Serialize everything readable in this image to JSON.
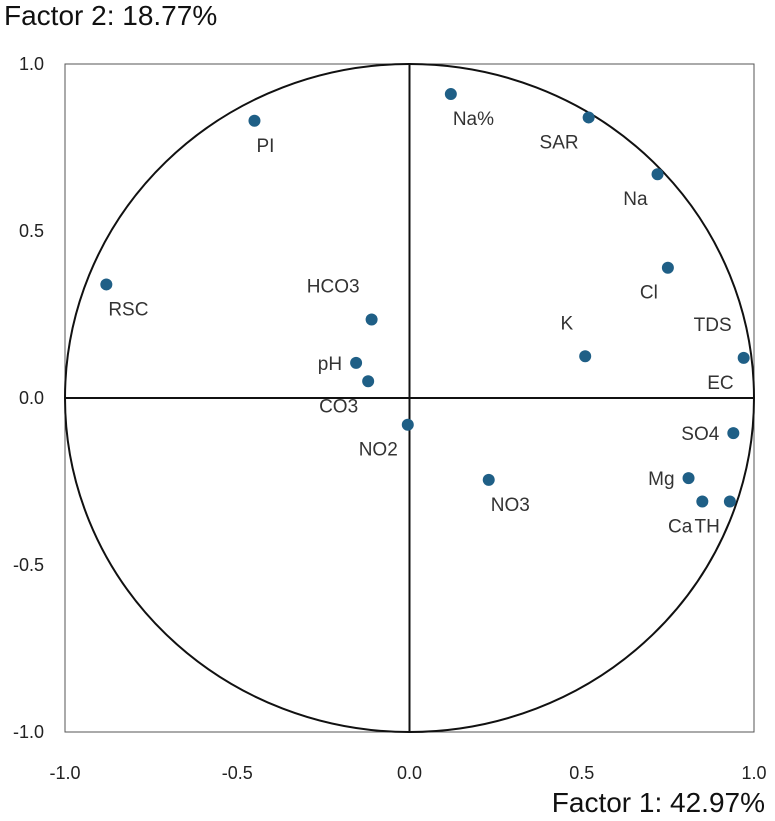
{
  "chart_data": {
    "type": "scatter",
    "title": "",
    "xlabel": "Factor 1: 42.97%",
    "ylabel": "Factor 2: 18.77%",
    "xlim": [
      -1.0,
      1.0
    ],
    "ylim": [
      -1.0,
      1.0
    ],
    "xticks": [
      "-1.0",
      "-0.5",
      "0.0",
      "0.5",
      "1.0"
    ],
    "yticks": [
      "1.0",
      "0.5",
      "0.0",
      "-0.5",
      "-1.0"
    ],
    "unit_circle": true,
    "grid": false,
    "point_color": "#1f5f86",
    "points": [
      {
        "label": "PI",
        "x": -0.45,
        "y": 0.83,
        "pos": "below-right"
      },
      {
        "label": "Na%",
        "x": 0.12,
        "y": 0.91,
        "pos": "below-right"
      },
      {
        "label": "SAR",
        "x": 0.52,
        "y": 0.84,
        "pos": "below-left"
      },
      {
        "label": "Na",
        "x": 0.72,
        "y": 0.67,
        "pos": "below-left"
      },
      {
        "label": "Cl",
        "x": 0.75,
        "y": 0.39,
        "pos": "below-left"
      },
      {
        "label": "RSC",
        "x": -0.88,
        "y": 0.34,
        "pos": "below-right"
      },
      {
        "label": "HCO3",
        "x": -0.11,
        "y": 0.235,
        "pos": "above-left"
      },
      {
        "label": "pH",
        "x": -0.155,
        "y": 0.105,
        "pos": "left"
      },
      {
        "label": "CO3",
        "x": -0.12,
        "y": 0.05,
        "pos": "below-left"
      },
      {
        "label": "K",
        "x": 0.51,
        "y": 0.125,
        "pos": "above-left"
      },
      {
        "label": "TDS",
        "x": 0.97,
        "y": 0.12,
        "pos": "above-left"
      },
      {
        "label": "EC",
        "x": 0.97,
        "y": 0.12,
        "pos": "below-left"
      },
      {
        "label": "NO2",
        "x": -0.005,
        "y": -0.08,
        "pos": "below-left"
      },
      {
        "label": "SO4",
        "x": 0.94,
        "y": -0.105,
        "pos": "left"
      },
      {
        "label": "NO3",
        "x": 0.23,
        "y": -0.245,
        "pos": "below-right"
      },
      {
        "label": "Mg",
        "x": 0.81,
        "y": -0.24,
        "pos": "left"
      },
      {
        "label": "Ca",
        "x": 0.85,
        "y": -0.31,
        "pos": "below-left"
      },
      {
        "label": "TH",
        "x": 0.93,
        "y": -0.31,
        "pos": "below-left"
      }
    ]
  }
}
